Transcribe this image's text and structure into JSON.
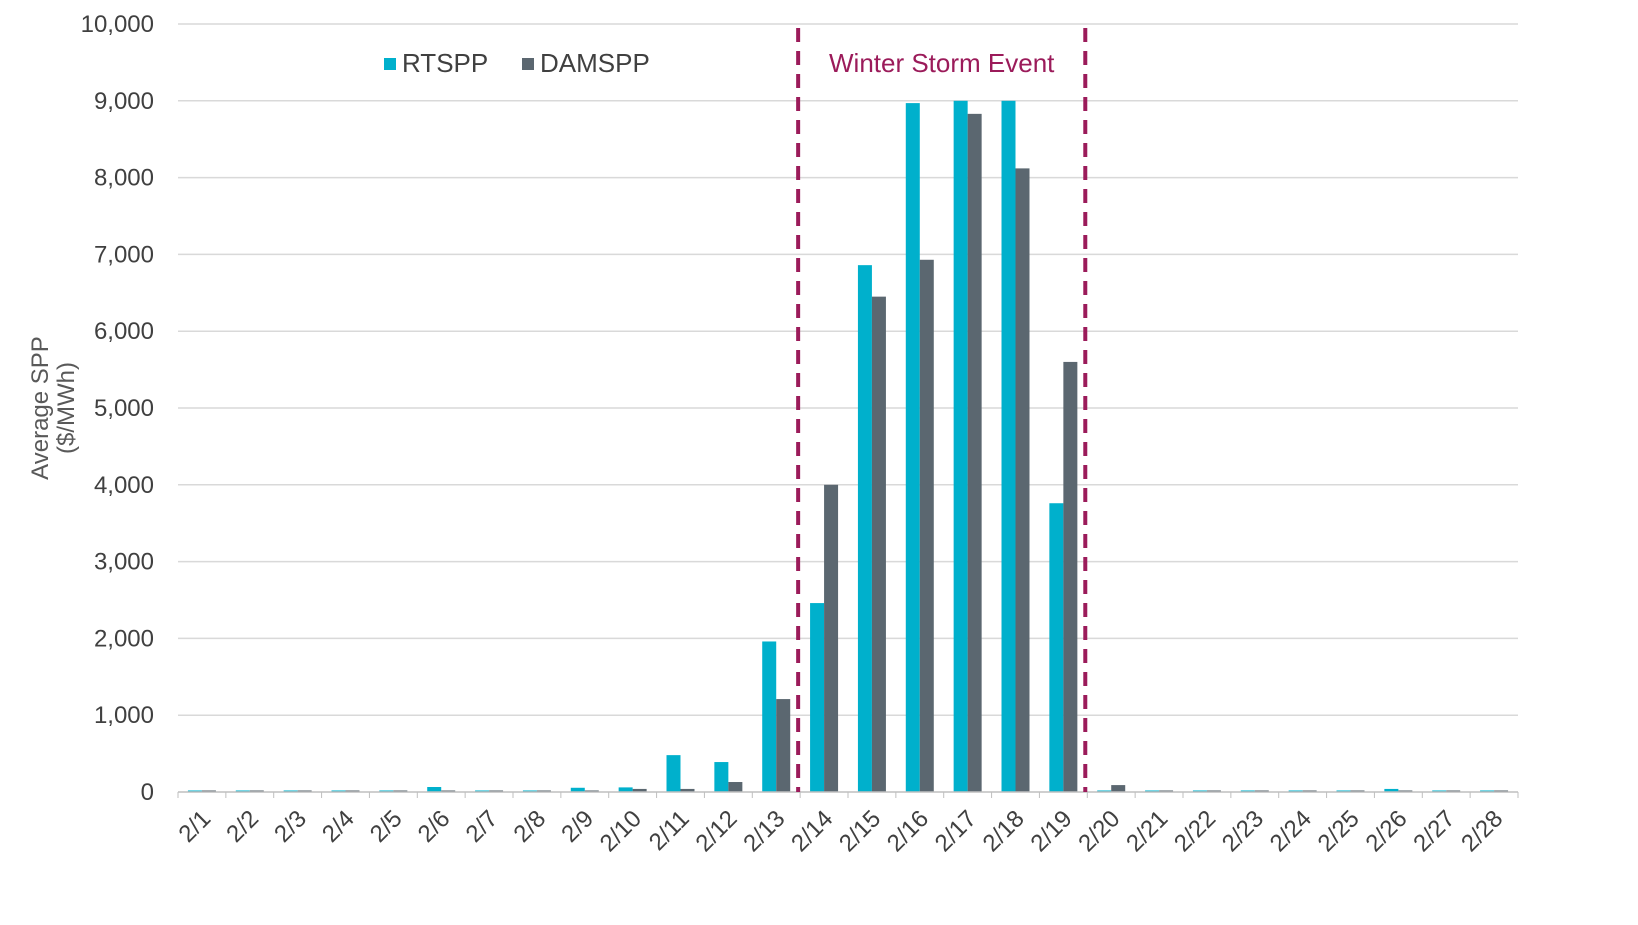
{
  "chart_data": {
    "type": "bar",
    "title": "",
    "xlabel": "",
    "ylabel": "Average SPP\n($/MWh)",
    "ylim": [
      0,
      10000
    ],
    "yticks": [
      0,
      1000,
      2000,
      3000,
      4000,
      5000,
      6000,
      7000,
      8000,
      9000,
      10000
    ],
    "ytick_labels": [
      "0",
      "1,000",
      "2,000",
      "3,000",
      "4,000",
      "5,000",
      "6,000",
      "7,000",
      "8,000",
      "9,000",
      "10,000"
    ],
    "grid": true,
    "legend_position": "top-left",
    "categories": [
      "2/1",
      "2/2",
      "2/3",
      "2/4",
      "2/5",
      "2/6",
      "2/7",
      "2/8",
      "2/9",
      "2/10",
      "2/11",
      "2/12",
      "2/13",
      "2/14",
      "2/15",
      "2/16",
      "2/17",
      "2/18",
      "2/19",
      "2/20",
      "2/21",
      "2/22",
      "2/23",
      "2/24",
      "2/25",
      "2/26",
      "2/27",
      "2/28"
    ],
    "series": [
      {
        "name": "RTSPP",
        "color": "#00B0CC",
        "values": [
          20,
          20,
          20,
          20,
          20,
          65,
          20,
          20,
          55,
          60,
          480,
          390,
          1960,
          2460,
          6860,
          8970,
          9000,
          9000,
          3760,
          20,
          20,
          20,
          20,
          20,
          20,
          40,
          20,
          20
        ]
      },
      {
        "name": "DAMSPP",
        "color": "#5B6770",
        "values": [
          20,
          20,
          20,
          20,
          20,
          20,
          20,
          20,
          20,
          40,
          40,
          130,
          1210,
          4000,
          6450,
          6930,
          8830,
          8120,
          5600,
          90,
          20,
          20,
          20,
          20,
          20,
          20,
          20,
          20
        ]
      }
    ],
    "annotations": [
      {
        "text": "Winter Storm Event",
        "color": "#9B1B5A",
        "span_start": "2/14",
        "span_end": "2/19",
        "style": "dashed vertical lines"
      }
    ],
    "colors": {
      "gridline": "#D9D9D9",
      "axis": "#BFBFBF",
      "text": "#404040"
    }
  }
}
